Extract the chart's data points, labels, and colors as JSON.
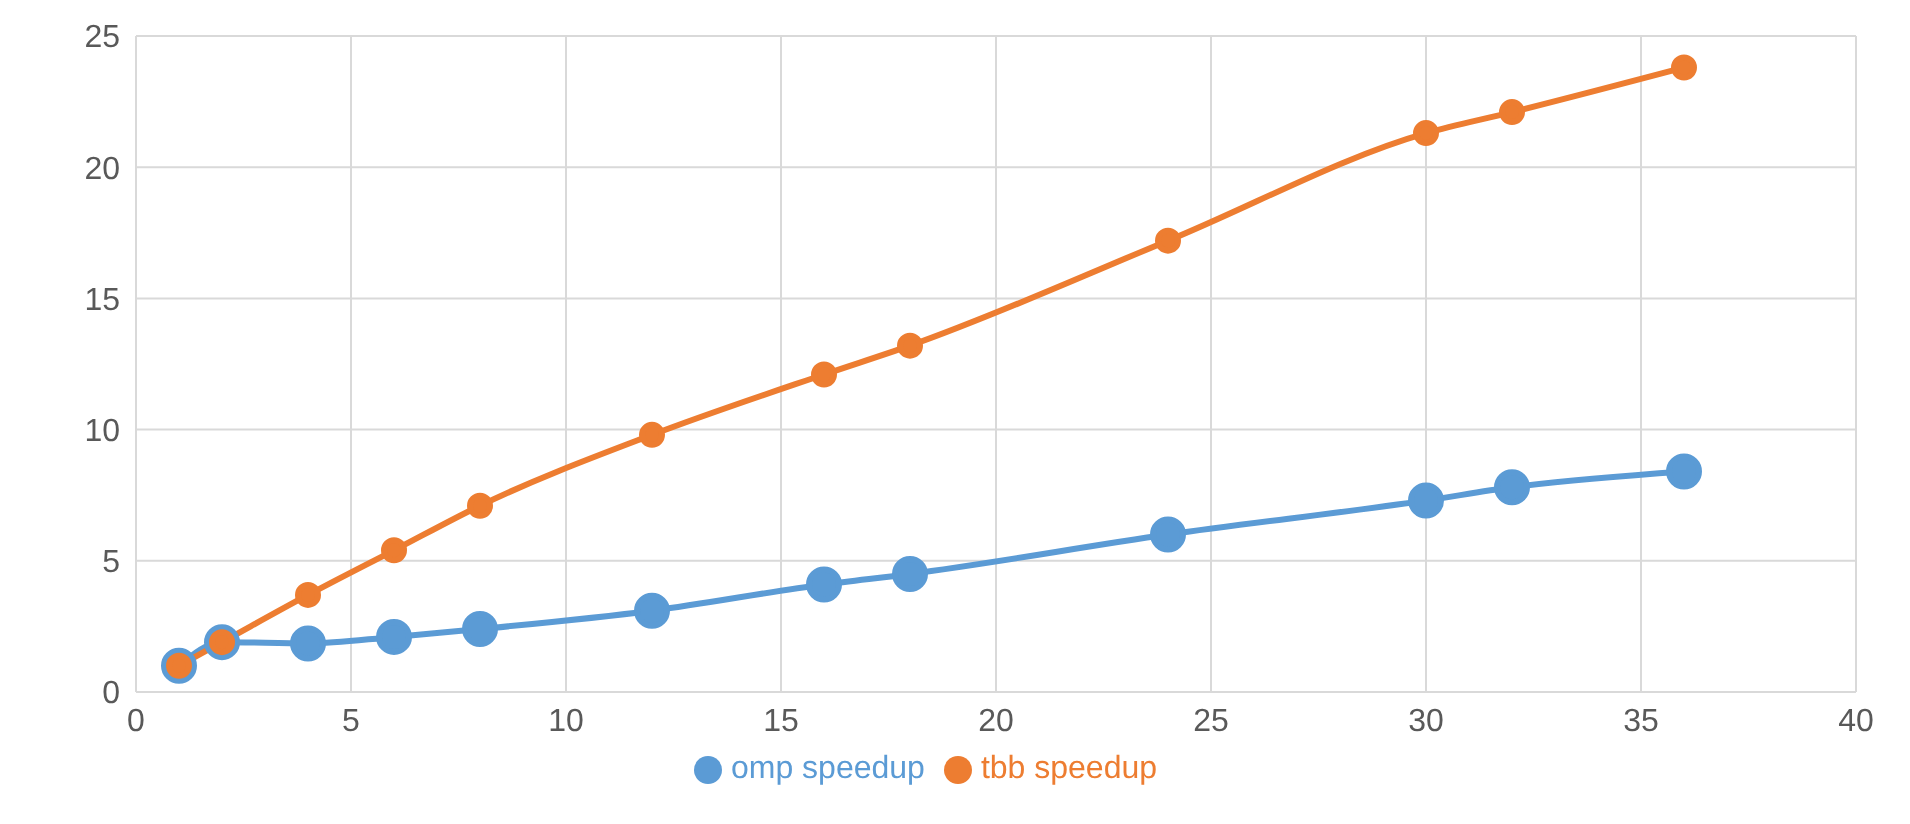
{
  "chart_data": {
    "type": "line",
    "x": [
      1,
      2,
      4,
      6,
      8,
      12,
      16,
      18,
      24,
      30,
      32,
      36
    ],
    "series": [
      {
        "name": "omp speedup",
        "color": "#5b9bd5",
        "values": [
          1,
          1.9,
          1.85,
          2.1,
          2.4,
          3.1,
          4.1,
          4.5,
          6.0,
          7.3,
          7.8,
          8.4
        ]
      },
      {
        "name": "tbb speedup",
        "color": "#ed7d31",
        "values": [
          1,
          1.9,
          3.7,
          5.4,
          7.1,
          9.8,
          12.1,
          13.2,
          17.2,
          21.3,
          22.1,
          23.8
        ]
      }
    ],
    "xlim": [
      0,
      40
    ],
    "xticks": [
      0,
      5,
      10,
      15,
      20,
      25,
      30,
      35,
      40
    ],
    "ylim": [
      0,
      25
    ],
    "yticks": [
      0,
      5,
      10,
      15,
      20,
      25
    ],
    "grid": true,
    "legend": "bottom",
    "marker": "circle",
    "line_style": "solid"
  }
}
